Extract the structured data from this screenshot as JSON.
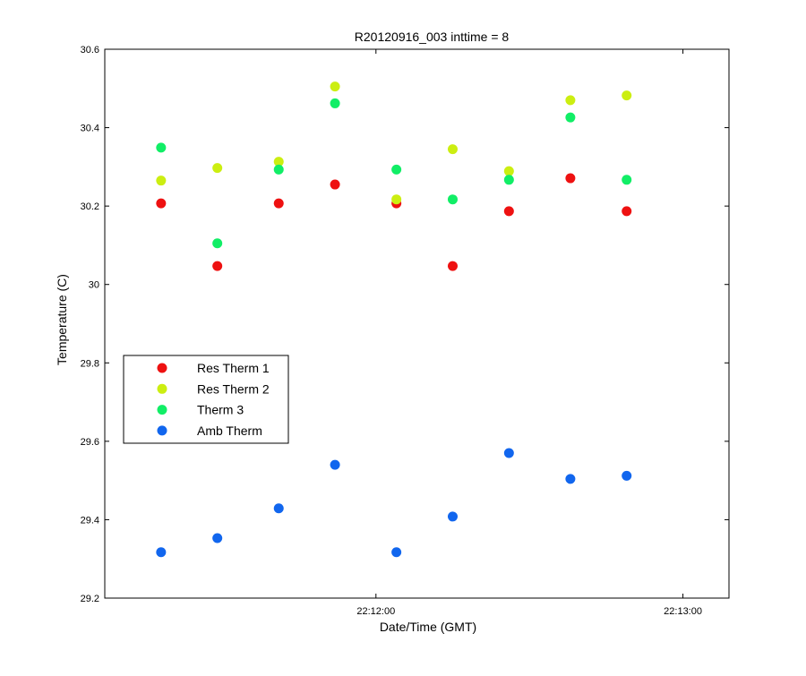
{
  "chart_data": {
    "type": "scatter",
    "title": "R20120916_003 inttime = 8",
    "xlabel": "Date/Time (GMT)",
    "ylabel": "Temperature (C)",
    "xlim": [
      "22:11:07",
      "22:13:09"
    ],
    "ylim": [
      29.2,
      30.6
    ],
    "x_ticks": [
      "22:12:00",
      "22:13:00"
    ],
    "y_ticks": [
      29.2,
      29.4,
      29.6,
      29.8,
      30,
      30.2,
      30.4,
      30.6
    ],
    "grid": false,
    "legend_position": "middle-left",
    "x": [
      "22:11:18",
      "22:11:29",
      "22:11:41",
      "22:11:52",
      "22:12:04",
      "22:12:15",
      "22:12:26",
      "22:12:38",
      "22:12:49"
    ],
    "series": [
      {
        "name": "Res Therm 1",
        "color": "#ee1111",
        "values": [
          30.207,
          30.047,
          30.207,
          30.255,
          30.207,
          30.047,
          30.187,
          30.271,
          30.187
        ]
      },
      {
        "name": "Res Therm 2",
        "color": "#ccee11",
        "values": [
          30.265,
          30.297,
          30.313,
          30.505,
          30.217,
          30.345,
          30.289,
          30.47,
          30.482
        ]
      },
      {
        "name": "Therm 3",
        "color": "#11ee66",
        "values": [
          30.349,
          30.105,
          30.293,
          30.462,
          30.293,
          30.217,
          30.267,
          30.426,
          30.267
        ]
      },
      {
        "name": "Amb Therm",
        "color": "#1166ee",
        "values": [
          29.317,
          29.353,
          29.429,
          29.54,
          29.317,
          29.408,
          29.57,
          29.504,
          29.512
        ]
      }
    ]
  }
}
